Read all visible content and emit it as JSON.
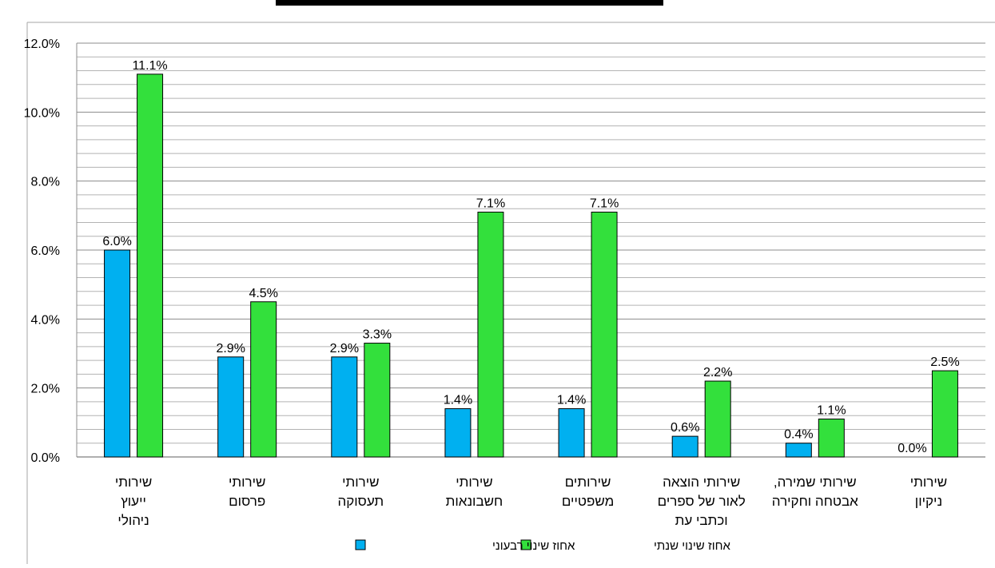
{
  "chart_data": {
    "type": "bar",
    "title": "",
    "categories": [
      [
        "שירותי",
        "ייעוץ",
        "ניהולי"
      ],
      [
        "שירותי",
        "פרסום"
      ],
      [
        "שירותי",
        "תעסוקה"
      ],
      [
        "שירותי",
        "חשבונאות"
      ],
      [
        "שירותים",
        "משפטיים"
      ],
      [
        "שירותי הוצאה",
        "לאור של ספרים",
        "וכתבי עת"
      ],
      [
        "שירותי שמירה,",
        "אבטחה וחקירה"
      ],
      [
        "שירותי",
        "ניקיון"
      ]
    ],
    "series": [
      {
        "name": "אחוז שינוי רבעוני",
        "color": "#00B0F0",
        "values": [
          6.0,
          2.9,
          2.9,
          1.4,
          1.4,
          0.6,
          0.4,
          0.0
        ],
        "labels": [
          "6.0%",
          "2.9%",
          "2.9%",
          "1.4%",
          "1.4%",
          "0.6%",
          "0.4%",
          "0.0%"
        ]
      },
      {
        "name": "אחוז שינוי שנתי",
        "color": "#33E03C",
        "values": [
          11.1,
          4.5,
          3.3,
          7.1,
          7.1,
          2.2,
          1.1,
          2.5
        ],
        "labels": [
          "11.1%",
          "4.5%",
          "3.3%",
          "7.1%",
          "7.1%",
          "2.2%",
          "1.1%",
          "2.5%"
        ]
      }
    ],
    "ylim": [
      0,
      12
    ],
    "yticks": [
      "0.0%",
      "2.0%",
      "4.0%",
      "6.0%",
      "8.0%",
      "10.0%",
      "12.0%"
    ],
    "ytick_values": [
      0,
      2,
      4,
      6,
      8,
      10,
      12
    ],
    "minor_gridlines_per_major": 4,
    "grid": true,
    "legend_position": "bottom"
  }
}
